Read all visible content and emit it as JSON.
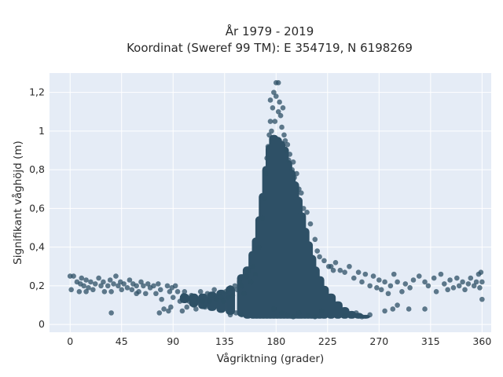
{
  "chart_data": {
    "type": "scatter",
    "title": "År 1979 - 2019",
    "subtitle": "Koordinat (Sweref 99 TM): E 354719, N 6198269",
    "xlabel": "Vågriktning (grader)",
    "ylabel": "Signifikant våghöjd (m)",
    "xlim": [
      -18,
      368
    ],
    "ylim": [
      -0.04,
      1.3
    ],
    "x_ticks": [
      0,
      45,
      90,
      135,
      180,
      225,
      270,
      315,
      360
    ],
    "y_ticks": [
      {
        "value": 0,
        "label": "0"
      },
      {
        "value": 0.2,
        "label": "0,2"
      },
      {
        "value": 0.4,
        "label": "0,4"
      },
      {
        "value": 0.6,
        "label": "0,6"
      },
      {
        "value": 0.8,
        "label": "0,8"
      },
      {
        "value": 1,
        "label": "1"
      },
      {
        "value": 1.2,
        "label": "1,2"
      }
    ],
    "grid": true,
    "background": "#e5ecf6",
    "marker_color": "#2e5066",
    "series": [
      {
        "points": [
          [
            0,
            0.25
          ],
          [
            1,
            0.18
          ],
          [
            3,
            0.25
          ],
          [
            6,
            0.22
          ],
          [
            8,
            0.17
          ],
          [
            9,
            0.21
          ],
          [
            10,
            0.24
          ],
          [
            12,
            0.2
          ],
          [
            14,
            0.23
          ],
          [
            16,
            0.19
          ],
          [
            18,
            0.22
          ],
          [
            20,
            0.18
          ],
          [
            22,
            0.21
          ],
          [
            25,
            0.24
          ],
          [
            27,
            0.2
          ],
          [
            29,
            0.22
          ],
          [
            30,
            0.17
          ],
          [
            33,
            0.2
          ],
          [
            35,
            0.23
          ],
          [
            36,
            0.17
          ],
          [
            38,
            0.21
          ],
          [
            40,
            0.25
          ],
          [
            42,
            0.2
          ],
          [
            44,
            0.22
          ],
          [
            45,
            0.18
          ],
          [
            47,
            0.21
          ],
          [
            50,
            0.19
          ],
          [
            52,
            0.23
          ],
          [
            54,
            0.18
          ],
          [
            55,
            0.21
          ],
          [
            58,
            0.2
          ],
          [
            60,
            0.17
          ],
          [
            62,
            0.22
          ],
          [
            64,
            0.2
          ],
          [
            66,
            0.16
          ],
          [
            68,
            0.21
          ],
          [
            70,
            0.19
          ],
          [
            73,
            0.2
          ],
          [
            75,
            0.16
          ],
          [
            77,
            0.21
          ],
          [
            79,
            0.18
          ],
          [
            80,
            0.13
          ],
          [
            85,
            0.2
          ],
          [
            87,
            0.17
          ],
          [
            89,
            0.19
          ],
          [
            90,
            0.14
          ],
          [
            92,
            0.2
          ],
          [
            94,
            0.17
          ],
          [
            96,
            0.12
          ],
          [
            99,
            0.15
          ],
          [
            100,
            0.17
          ],
          [
            36,
            0.06
          ],
          [
            14,
            0.17
          ],
          [
            58,
            0.16
          ],
          [
            78,
            0.06
          ],
          [
            82,
            0.08
          ],
          [
            86,
            0.07
          ],
          [
            88,
            0.09
          ],
          [
            98,
            0.07
          ],
          [
            102,
            0.09
          ],
          [
            104,
            0.12
          ],
          [
            106,
            0.15
          ],
          [
            108,
            0.1
          ],
          [
            110,
            0.08
          ],
          [
            112,
            0.13
          ],
          [
            114,
            0.17
          ],
          [
            116,
            0.12
          ],
          [
            118,
            0.09
          ],
          [
            120,
            0.16
          ],
          [
            122,
            0.12
          ],
          [
            124,
            0.15
          ],
          [
            126,
            0.18
          ],
          [
            128,
            0.13
          ],
          [
            130,
            0.16
          ],
          [
            132,
            0.14
          ],
          [
            134,
            0.12
          ],
          [
            136,
            0.17
          ],
          [
            138,
            0.14
          ],
          [
            140,
            0.19
          ],
          [
            142,
            0.15
          ],
          [
            144,
            0.2
          ],
          [
            146,
            0.18
          ],
          [
            148,
            0.22
          ],
          [
            150,
            0.2
          ],
          [
            152,
            0.16
          ],
          [
            154,
            0.25
          ],
          [
            156,
            0.28
          ],
          [
            158,
            0.22
          ],
          [
            160,
            0.3
          ],
          [
            162,
            0.26
          ],
          [
            228,
            0.3
          ],
          [
            232,
            0.32
          ],
          [
            236,
            0.28
          ],
          [
            240,
            0.27
          ],
          [
            244,
            0.3
          ],
          [
            248,
            0.24
          ],
          [
            252,
            0.27
          ],
          [
            255,
            0.22
          ],
          [
            258,
            0.26
          ],
          [
            262,
            0.2
          ],
          [
            265,
            0.25
          ],
          [
            268,
            0.19
          ],
          [
            270,
            0.23
          ],
          [
            272,
            0.18
          ],
          [
            275,
            0.22
          ],
          [
            278,
            0.16
          ],
          [
            280,
            0.2
          ],
          [
            283,
            0.26
          ],
          [
            286,
            0.22
          ],
          [
            290,
            0.17
          ],
          [
            293,
            0.21
          ],
          [
            297,
            0.19
          ],
          [
            300,
            0.23
          ],
          [
            305,
            0.25
          ],
          [
            310,
            0.22
          ],
          [
            313,
            0.2
          ],
          [
            318,
            0.24
          ],
          [
            320,
            0.17
          ],
          [
            324,
            0.26
          ],
          [
            327,
            0.21
          ],
          [
            330,
            0.18
          ],
          [
            332,
            0.23
          ],
          [
            335,
            0.19
          ],
          [
            338,
            0.24
          ],
          [
            340,
            0.2
          ],
          [
            343,
            0.22
          ],
          [
            345,
            0.18
          ],
          [
            348,
            0.21
          ],
          [
            350,
            0.24
          ],
          [
            353,
            0.2
          ],
          [
            355,
            0.22
          ],
          [
            357,
            0.26
          ],
          [
            358,
            0.19
          ],
          [
            359,
            0.27
          ],
          [
            360,
            0.13
          ],
          [
            360,
            0.22
          ],
          [
            286,
            0.1
          ],
          [
            296,
            0.08
          ],
          [
            310,
            0.08
          ],
          [
            240,
            0.05
          ],
          [
            250,
            0.06
          ],
          [
            255,
            0.04
          ],
          [
            262,
            0.05
          ],
          [
            275,
            0.07
          ],
          [
            282,
            0.08
          ],
          [
            165,
            0.4
          ],
          [
            168,
            0.55
          ],
          [
            170,
            0.65
          ],
          [
            171,
            0.78
          ],
          [
            172,
            0.86
          ],
          [
            173,
            0.92
          ],
          [
            174,
            0.98
          ],
          [
            175,
            1.05
          ],
          [
            175,
            1.16
          ],
          [
            176,
            1.0
          ],
          [
            177,
            1.12
          ],
          [
            178,
            1.2
          ],
          [
            179,
            1.05
          ],
          [
            180,
            1.18
          ],
          [
            180,
            1.25
          ],
          [
            182,
            1.25
          ],
          [
            182,
            1.1
          ],
          [
            183,
            1.15
          ],
          [
            184,
            1.08
          ],
          [
            185,
            1.02
          ],
          [
            186,
            1.12
          ],
          [
            187,
            0.98
          ],
          [
            188,
            0.95
          ],
          [
            189,
            0.9
          ],
          [
            190,
            0.93
          ],
          [
            191,
            0.85
          ],
          [
            192,
            0.88
          ],
          [
            194,
            0.8
          ],
          [
            195,
            0.84
          ],
          [
            196,
            0.76
          ],
          [
            198,
            0.78
          ],
          [
            200,
            0.7
          ],
          [
            202,
            0.68
          ],
          [
            204,
            0.6
          ],
          [
            207,
            0.58
          ],
          [
            210,
            0.52
          ],
          [
            214,
            0.44
          ],
          [
            216,
            0.38
          ],
          [
            218,
            0.35
          ],
          [
            222,
            0.33
          ],
          [
            226,
            0.3
          ],
          [
            230,
            0.28
          ],
          [
            178,
            0.08
          ],
          [
            185,
            0.06
          ],
          [
            190,
            0.05
          ],
          [
            195,
            0.04
          ],
          [
            200,
            0.06
          ],
          [
            208,
            0.05
          ],
          [
            214,
            0.04
          ],
          [
            220,
            0.07
          ],
          [
            150,
            0.05
          ],
          [
            145,
            0.06
          ],
          [
            140,
            0.05
          ]
        ],
        "density_core": [
          [
            150,
            0.04,
            0.26
          ],
          [
            155,
            0.03,
            0.3
          ],
          [
            160,
            0.03,
            0.38
          ],
          [
            163,
            0.03,
            0.45
          ],
          [
            166,
            0.03,
            0.56
          ],
          [
            169,
            0.03,
            0.68
          ],
          [
            172,
            0.03,
            0.82
          ],
          [
            175,
            0.03,
            0.93
          ],
          [
            178,
            0.03,
            0.98
          ],
          [
            181,
            0.03,
            0.97
          ],
          [
            184,
            0.03,
            0.95
          ],
          [
            187,
            0.03,
            0.92
          ],
          [
            190,
            0.03,
            0.85
          ],
          [
            193,
            0.03,
            0.8
          ],
          [
            196,
            0.03,
            0.74
          ],
          [
            199,
            0.03,
            0.66
          ],
          [
            202,
            0.03,
            0.58
          ],
          [
            205,
            0.03,
            0.5
          ],
          [
            208,
            0.03,
            0.43
          ],
          [
            211,
            0.03,
            0.36
          ],
          [
            214,
            0.03,
            0.3
          ],
          [
            218,
            0.03,
            0.25
          ],
          [
            222,
            0.03,
            0.2
          ],
          [
            228,
            0.03,
            0.16
          ],
          [
            234,
            0.03,
            0.12
          ],
          [
            240,
            0.03,
            0.09
          ],
          [
            246,
            0.03,
            0.07
          ],
          [
            252,
            0.03,
            0.06
          ],
          [
            258,
            0.03,
            0.05
          ],
          [
            140,
            0.05,
            0.2
          ],
          [
            132,
            0.06,
            0.18
          ],
          [
            124,
            0.07,
            0.17
          ],
          [
            116,
            0.08,
            0.16
          ],
          [
            108,
            0.09,
            0.16
          ],
          [
            100,
            0.11,
            0.16
          ]
        ]
      }
    ]
  }
}
